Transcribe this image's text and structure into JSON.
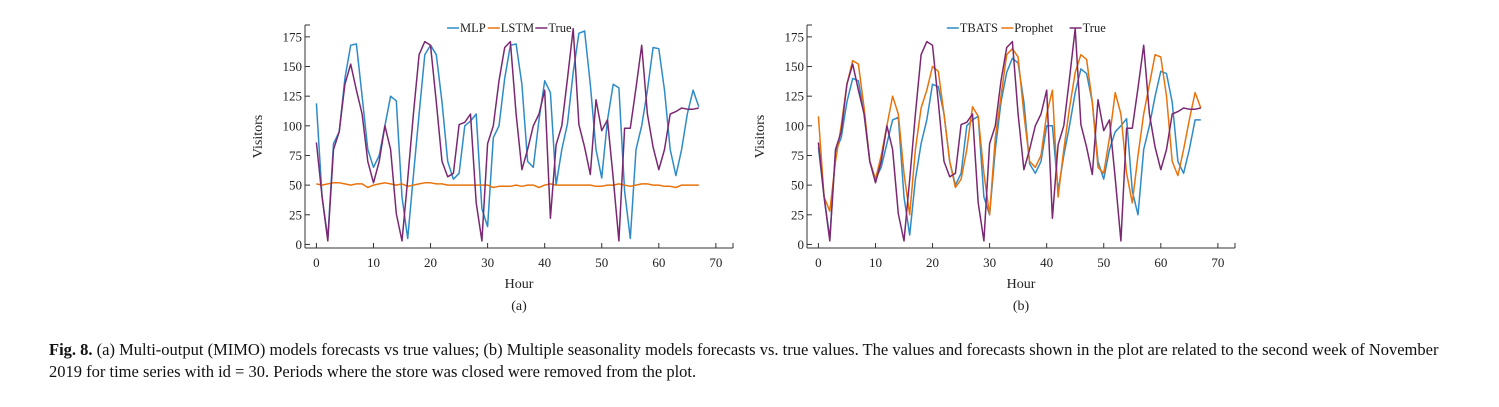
{
  "chart_data": [
    {
      "type": "line",
      "panel_label": "(a)",
      "xlabel": "Hour",
      "ylabel": "Visitors",
      "xlim": [
        -2,
        73
      ],
      "ylim": [
        -3,
        185
      ],
      "xticks": [
        0,
        10,
        20,
        30,
        40,
        50,
        60,
        70
      ],
      "yticks": [
        0,
        25,
        50,
        75,
        100,
        125,
        150,
        175
      ],
      "legend_position": "top-center",
      "series": [
        {
          "name": "MLP",
          "color": "#2e8bc8",
          "values": [
            119,
            40,
            5,
            85,
            95,
            140,
            168,
            169,
            125,
            80,
            65,
            75,
            100,
            125,
            121,
            40,
            5,
            58,
            110,
            160,
            168,
            160,
            120,
            70,
            55,
            60,
            100,
            104,
            110,
            30,
            15,
            90,
            100,
            140,
            168,
            169,
            135,
            70,
            65,
            105,
            138,
            128,
            50,
            80,
            102,
            145,
            178,
            180,
            135,
            80,
            56,
            105,
            135,
            132,
            45,
            5,
            80,
            100,
            130,
            166,
            165,
            130,
            80,
            58,
            80,
            110,
            130,
            116
          ]
        },
        {
          "name": "LSTM",
          "color": "#e8730c",
          "values": [
            51,
            50,
            51,
            52,
            52,
            51,
            50,
            51,
            51,
            48,
            50,
            51,
            52,
            51,
            50,
            51,
            49,
            50,
            51,
            52,
            52,
            51,
            51,
            50,
            50,
            50,
            50,
            50,
            50,
            50,
            50,
            48,
            49,
            49,
            49,
            50,
            49,
            50,
            50,
            48,
            50,
            51,
            50,
            50,
            50,
            50,
            50,
            50,
            50,
            49,
            49,
            50,
            50,
            51,
            50,
            49,
            50,
            51,
            51,
            50,
            50,
            49,
            49,
            48,
            50,
            50,
            50,
            50
          ]
        },
        {
          "name": "True",
          "color": "#7b2872",
          "values": [
            86,
            40,
            3,
            80,
            95,
            135,
            152,
            130,
            110,
            70,
            52,
            70,
            100,
            80,
            26,
            3,
            55,
            110,
            160,
            171,
            168,
            120,
            70,
            57,
            60,
            101,
            103,
            110,
            35,
            3,
            85,
            100,
            138,
            166,
            171,
            110,
            63,
            80,
            100,
            110,
            130,
            22,
            84,
            100,
            140,
            182,
            101,
            82,
            59,
            122,
            96,
            105,
            56,
            3,
            98,
            98,
            132,
            168,
            110,
            82,
            63,
            80,
            110,
            112,
            115,
            114,
            114,
            115
          ]
        }
      ]
    },
    {
      "type": "line",
      "panel_label": "(b)",
      "xlabel": "Hour",
      "ylabel": "Visitors",
      "xlim": [
        -2,
        73
      ],
      "ylim": [
        -3,
        185
      ],
      "xticks": [
        0,
        10,
        20,
        30,
        40,
        50,
        60,
        70
      ],
      "yticks": [
        0,
        25,
        50,
        75,
        100,
        125,
        150,
        175
      ],
      "legend_position": "top-center",
      "series": [
        {
          "name": "TBATS",
          "color": "#2e8bc8",
          "values": [
            82,
            40,
            5,
            78,
            90,
            120,
            140,
            138,
            110,
            70,
            55,
            65,
            85,
            105,
            107,
            40,
            8,
            55,
            85,
            105,
            135,
            133,
            110,
            70,
            50,
            60,
            100,
            105,
            108,
            40,
            25,
            80,
            120,
            145,
            157,
            153,
            120,
            68,
            60,
            70,
            100,
            100,
            45,
            75,
            100,
            128,
            148,
            144,
            120,
            70,
            55,
            80,
            95,
            100,
            106,
            45,
            25,
            80,
            100,
            125,
            146,
            144,
            120,
            70,
            60,
            80,
            105,
            105
          ]
        },
        {
          "name": "Prophet",
          "color": "#e8730c",
          "values": [
            108,
            40,
            28,
            70,
            100,
            135,
            155,
            152,
            115,
            70,
            55,
            75,
            100,
            125,
            110,
            60,
            25,
            80,
            115,
            130,
            150,
            146,
            110,
            70,
            48,
            55,
            80,
            116,
            108,
            60,
            25,
            90,
            125,
            160,
            165,
            158,
            110,
            70,
            65,
            75,
            110,
            130,
            40,
            80,
            115,
            145,
            160,
            156,
            120,
            65,
            60,
            90,
            128,
            110,
            60,
            35,
            75,
            110,
            135,
            160,
            158,
            125,
            70,
            58,
            80,
            105,
            128,
            115
          ]
        },
        {
          "name": "True",
          "color": "#7b2872",
          "values": [
            86,
            40,
            3,
            80,
            95,
            135,
            152,
            130,
            110,
            70,
            52,
            70,
            100,
            80,
            26,
            3,
            55,
            110,
            160,
            171,
            168,
            120,
            70,
            57,
            60,
            101,
            103,
            110,
            35,
            3,
            85,
            100,
            138,
            166,
            171,
            110,
            63,
            80,
            100,
            110,
            130,
            22,
            84,
            100,
            140,
            182,
            101,
            82,
            59,
            122,
            96,
            105,
            56,
            3,
            98,
            98,
            132,
            168,
            110,
            82,
            63,
            80,
            110,
            112,
            115,
            114,
            114,
            115
          ]
        }
      ]
    }
  ],
  "caption": {
    "label": "Fig. 8.",
    "text": "(a) Multi-output (MIMO) models forecasts vs true values; (b) Multiple seasonality models forecasts vs. true values. The values and forecasts shown in the plot are related to the second week of November 2019 for time series with id = 30. Periods where the store was closed were removed from the plot."
  }
}
